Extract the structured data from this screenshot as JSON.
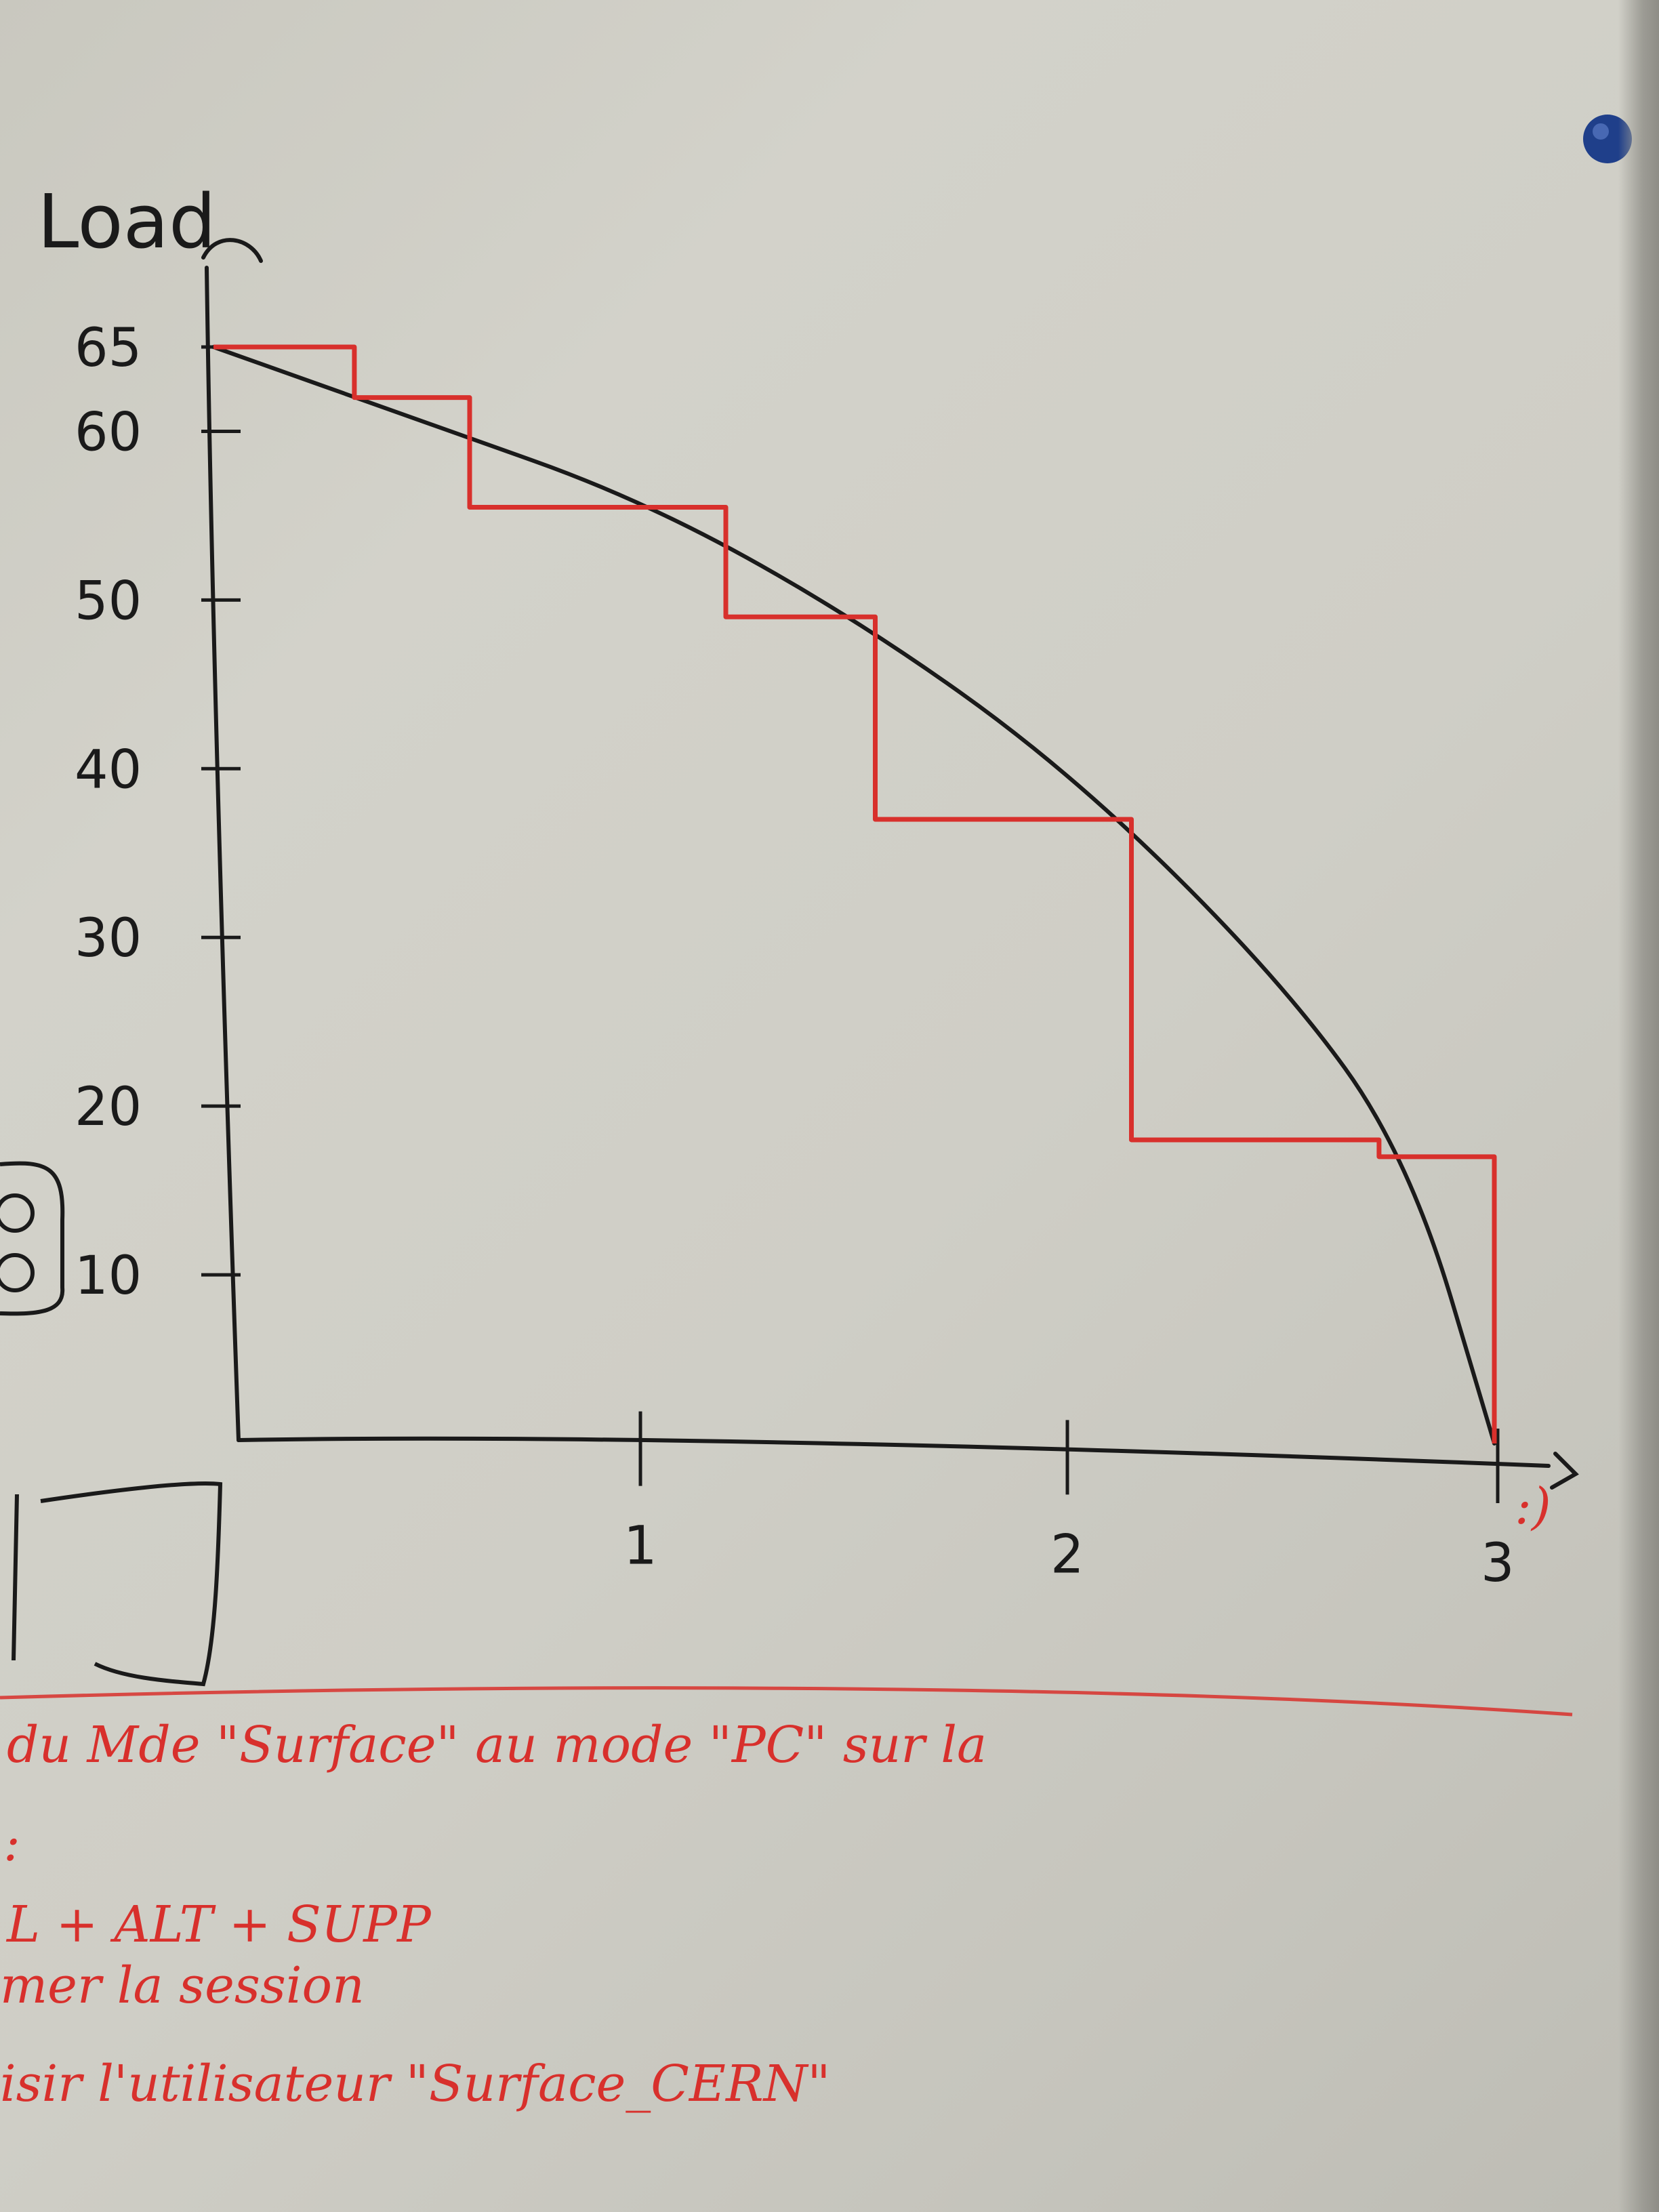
{
  "chart_data": {
    "type": "line",
    "ylabel": "Load",
    "x_ticks": [
      "1",
      "2",
      "3"
    ],
    "y_ticks": [
      "65",
      "60",
      "50",
      "40",
      "30",
      "20",
      "10"
    ],
    "xlim": [
      0,
      3
    ],
    "ylim": [
      0,
      65
    ],
    "series": [
      {
        "kind": "curve",
        "color": "#1a1a1a",
        "x": [
          0,
          0.5,
          1.0,
          1.5,
          2.0,
          2.5,
          2.8,
          3.0
        ],
        "y": [
          65,
          60.5,
          56,
          49,
          40,
          27.5,
          17,
          0
        ]
      },
      {
        "kind": "step",
        "color": "#d8302c",
        "x": [
          0,
          0.33,
          0.33,
          0.6,
          0.6,
          1.2,
          1.2,
          1.55,
          1.55,
          2.15,
          2.15,
          2.73,
          2.73,
          3.0,
          3.0
        ],
        "y": [
          65,
          65,
          62,
          62,
          55.5,
          55.5,
          49,
          49,
          37,
          37,
          18,
          18,
          17,
          17,
          0
        ]
      }
    ],
    "annotation": ":)"
  },
  "notes": [
    "du Mde \"Surface\" au mode \"PC\" sur la",
    ":",
    "L + ALT + SUPP",
    "mer la session",
    "isir l'utilisateur \"Surface_CERN\""
  ],
  "colors": {
    "ink_black": "#1a1a1a",
    "ink_red": "#d8302c",
    "magnet": "#1f3f8a"
  }
}
